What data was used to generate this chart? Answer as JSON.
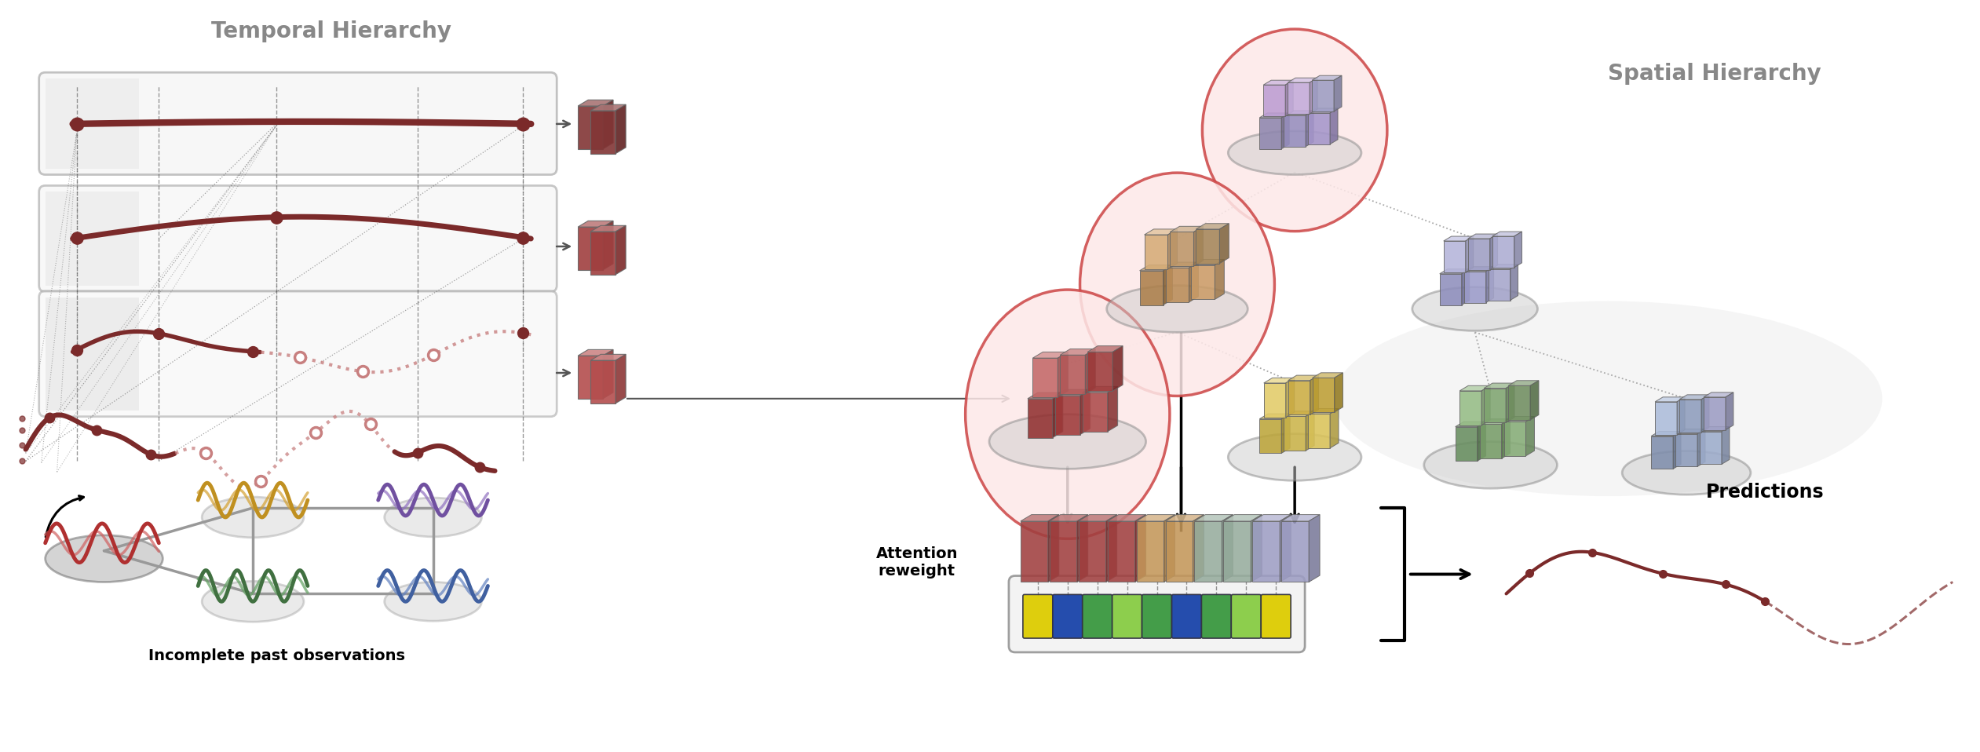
{
  "fig_width": 25.22,
  "fig_height": 9.58,
  "bg_color": "#ffffff",
  "title_temporal": "Temporal Hierarchy",
  "title_spatial": "Spatial Hierarchy",
  "label_incomplete": "Incomplete past observations",
  "label_attention": "Attention\nreweight",
  "label_predictions": "Predictions",
  "dark_red": "#7B2A2A",
  "medium_red": "#9B4040",
  "light_red": "#C88080",
  "pink_red": "#E0A0A0",
  "text_gray": "#888888",
  "panel_face": "#f8f8f8",
  "panel_edge": "#aaaaaa"
}
